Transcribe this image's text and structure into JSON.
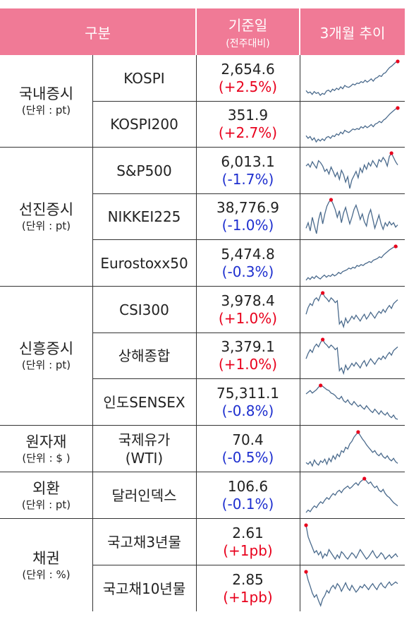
{
  "header": {
    "category": "구분",
    "base_date": "기준일",
    "base_date_sub": "(전주대비)",
    "trend": "3개월 추이"
  },
  "colors": {
    "header_bg": "#f07a96",
    "up": "#e8001c",
    "down": "#1e2fcf",
    "spark_line": "#4a6a8c",
    "spark_marker": "#e8001c"
  },
  "groups": [
    {
      "name": "국내증시",
      "unit": "(단위 : pt)"
    },
    {
      "name": "선진증시",
      "unit": "(단위 : pt)"
    },
    {
      "name": "신흥증시",
      "unit": "(단위 : pt)"
    },
    {
      "name": "원자재",
      "unit": "(단위 : $ )"
    },
    {
      "name": "외환",
      "unit": "(단위 : pt)"
    },
    {
      "name": "채권",
      "unit": "(단위 : %)"
    }
  ],
  "rows": [
    {
      "name": "KOSPI",
      "value": "2,654.6",
      "change": "(+2.5%)",
      "dir": "up",
      "trend": [
        30,
        25,
        27,
        22,
        28,
        24,
        26,
        20,
        24,
        22,
        29,
        31,
        27,
        33,
        30,
        35,
        32,
        38,
        34,
        41,
        38,
        37,
        40,
        44,
        42,
        46,
        45,
        49,
        47,
        52,
        48,
        51,
        55,
        50,
        56,
        58,
        62,
        60,
        66,
        68,
        74,
        79,
        82,
        86,
        90,
        92
      ]
    },
    {
      "name": "KOSPI200",
      "value": "351.9",
      "change": "(+2.7%)",
      "dir": "up",
      "trend": [
        32,
        26,
        30,
        22,
        27,
        18,
        24,
        20,
        25,
        21,
        28,
        30,
        26,
        32,
        30,
        36,
        33,
        40,
        36,
        44,
        41,
        39,
        43,
        47,
        45,
        48,
        46,
        52,
        49,
        54,
        50,
        53,
        57,
        52,
        58,
        60,
        64,
        61,
        67,
        70,
        75,
        80,
        84,
        88,
        92,
        94
      ]
    },
    {
      "name": "S&P500",
      "value": "6,013.1",
      "change": "(-1.7%)",
      "dir": "dn",
      "trend": [
        70,
        74,
        68,
        78,
        72,
        66,
        80,
        76,
        70,
        60,
        64,
        55,
        68,
        60,
        50,
        58,
        45,
        62,
        54,
        40,
        50,
        28,
        44,
        52,
        60,
        48,
        66,
        58,
        72,
        64,
        76,
        70,
        80,
        74,
        68,
        82,
        78,
        86,
        80,
        70,
        88,
        94,
        86,
        78,
        72
      ]
    },
    {
      "name": "NIKKEI225",
      "value": "38,776.9",
      "change": "(-1.0%)",
      "dir": "dn",
      "trend": [
        40,
        50,
        35,
        60,
        45,
        30,
        55,
        70,
        48,
        66,
        80,
        88,
        92,
        84,
        74,
        60,
        72,
        50,
        68,
        78,
        62,
        48,
        60,
        74,
        82,
        70,
        56,
        66,
        52,
        44,
        64,
        74,
        58,
        40,
        52,
        64,
        48,
        38,
        50,
        44,
        52,
        46,
        50,
        42,
        46
      ]
    },
    {
      "name": "Eurostoxx50",
      "value": "5,474.8",
      "change": "(-0.3%)",
      "dir": "dn",
      "trend": [
        12,
        18,
        14,
        20,
        16,
        22,
        18,
        15,
        20,
        24,
        19,
        23,
        21,
        26,
        22,
        25,
        30,
        27,
        32,
        34,
        36,
        40,
        38,
        42,
        40,
        46,
        44,
        48,
        46,
        50,
        52,
        55,
        53,
        58,
        60,
        62,
        66,
        64,
        70,
        74,
        78,
        82,
        85,
        88,
        90,
        88
      ]
    },
    {
      "name": "CSI300",
      "value": "3,978.4",
      "change": "(+1.0%)",
      "dir": "up",
      "trend": [
        48,
        62,
        70,
        66,
        78,
        82,
        76,
        88,
        92,
        84,
        80,
        74,
        82,
        78,
        72,
        76,
        28,
        34,
        22,
        40,
        30,
        36,
        44,
        38,
        46,
        40,
        34,
        42,
        48,
        38,
        44,
        52,
        46,
        40,
        48,
        54,
        50,
        58,
        52,
        60,
        66,
        60,
        70,
        74,
        78
      ]
    },
    {
      "name": "상해종합",
      "value": "3,379.1",
      "change": "(+1.0%)",
      "dir": "up",
      "trend": [
        50,
        62,
        70,
        64,
        76,
        82,
        76,
        86,
        92,
        84,
        80,
        74,
        80,
        76,
        70,
        74,
        24,
        30,
        18,
        36,
        26,
        32,
        40,
        34,
        42,
        36,
        30,
        40,
        46,
        34,
        42,
        50,
        44,
        38,
        46,
        52,
        48,
        56,
        50,
        58,
        64,
        58,
        68,
        72,
        76
      ]
    },
    {
      "name": "인도SENSEX",
      "value": "75,311.1",
      "change": "(-0.8%)",
      "dir": "dn",
      "trend": [
        70,
        74,
        78,
        72,
        76,
        80,
        86,
        90,
        88,
        84,
        80,
        78,
        72,
        70,
        66,
        60,
        58,
        64,
        54,
        50,
        56,
        48,
        44,
        52,
        46,
        40,
        44,
        38,
        34,
        42,
        36,
        30,
        26,
        34,
        28,
        22,
        30,
        24,
        20,
        26,
        18,
        14,
        20,
        12,
        10
      ]
    },
    {
      "name": "국제유가\n(WTI)",
      "value": "70.4",
      "change": "(-0.5%)",
      "dir": "dn",
      "trend": [
        20,
        16,
        22,
        12,
        26,
        18,
        14,
        24,
        20,
        28,
        16,
        30,
        22,
        36,
        28,
        40,
        34,
        48,
        44,
        56,
        52,
        64,
        70,
        80,
        86,
        92,
        84,
        76,
        70,
        62,
        56,
        50,
        44,
        48,
        40,
        36,
        42,
        34,
        30,
        36,
        28,
        24,
        30,
        22,
        18
      ]
    },
    {
      "name": "달러인덱스",
      "value": "106.6",
      "change": "(-0.1%)",
      "dir": "dn",
      "trend": [
        10,
        16,
        12,
        20,
        26,
        22,
        30,
        36,
        32,
        40,
        46,
        42,
        50,
        56,
        52,
        60,
        64,
        58,
        66,
        70,
        74,
        68,
        72,
        78,
        82,
        76,
        84,
        88,
        92,
        86,
        80,
        84,
        76,
        70,
        74,
        64,
        60,
        66,
        56,
        50,
        46,
        40,
        34,
        30,
        26
      ]
    },
    {
      "name": "국고채3년물",
      "value": "2.61",
      "change": "(+1pb)",
      "dir": "up",
      "trend": [
        92,
        70,
        60,
        50,
        40,
        44,
        36,
        42,
        30,
        38,
        34,
        46,
        40,
        34,
        28,
        36,
        30,
        42,
        38,
        32,
        28,
        34,
        40,
        36,
        30,
        38,
        46,
        40,
        34,
        28,
        32,
        38,
        44,
        36,
        30,
        34,
        40,
        36,
        28,
        32,
        36,
        30,
        34,
        38,
        32
      ]
    },
    {
      "name": "국고채10년물",
      "value": "2.85",
      "change": "(+1pb)",
      "dir": "up",
      "trend": [
        90,
        70,
        56,
        40,
        30,
        36,
        22,
        10,
        26,
        34,
        46,
        40,
        52,
        58,
        50,
        62,
        56,
        44,
        54,
        64,
        52,
        46,
        58,
        50,
        42,
        48,
        56,
        52,
        60,
        54,
        48,
        56,
        62,
        54,
        48,
        58,
        64,
        56,
        52,
        60,
        66,
        58,
        62,
        66,
        62
      ]
    }
  ]
}
